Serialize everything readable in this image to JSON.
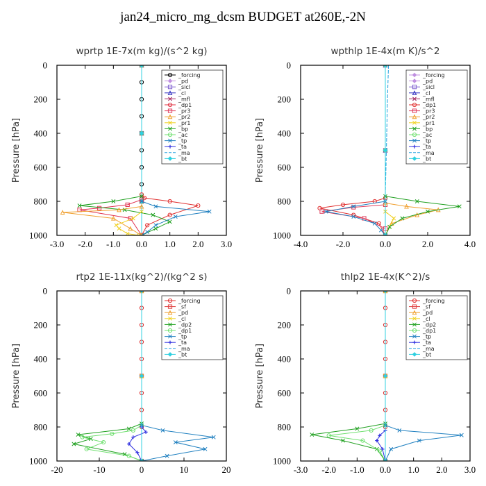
{
  "page_title": "jan24_micro_mg_dcsm  BUDGET at260E,-2N",
  "chart_data": [
    {
      "type": "line",
      "title": "wprtp   1E-7x(m kg)/(s^2 kg)",
      "ylabel": "Pressure [hPa]",
      "xlim": [
        -3.0,
        3.0
      ],
      "ylim": [
        1000,
        0
      ],
      "xticks": [
        "-3.0",
        "-2.0",
        "-1.0",
        "0.0",
        "1.0",
        "2.0",
        "3.0"
      ],
      "yticks": [
        "0",
        "200",
        "400",
        "600",
        "800",
        "1000"
      ],
      "legend_position": "top-right",
      "series": [
        {
          "name": "_forcing",
          "color": "#000000",
          "marker": "o",
          "x": [
            0,
            0,
            0,
            0,
            0,
            0,
            0,
            0,
            0,
            0
          ],
          "y": [
            0,
            100,
            200,
            300,
            400,
            500,
            600,
            700,
            800,
            1000
          ]
        },
        {
          "name": "_pd",
          "color": "#c090e0",
          "marker": "d",
          "x": [
            0,
            0,
            0,
            0
          ],
          "y": [
            0,
            400,
            800,
            1000
          ]
        },
        {
          "name": "_sicl",
          "color": "#8060d0",
          "marker": "s",
          "x": [
            0,
            0,
            0,
            0
          ],
          "y": [
            0,
            400,
            800,
            1000
          ]
        },
        {
          "name": "_cl",
          "color": "#3030c0",
          "marker": "^",
          "x": [
            0,
            0,
            0,
            0
          ],
          "y": [
            0,
            400,
            800,
            1000
          ]
        },
        {
          "name": "_mfl",
          "color": "#a0205a",
          "marker": "x",
          "x": [
            0,
            0,
            0,
            0
          ],
          "y": [
            0,
            400,
            800,
            1000
          ]
        },
        {
          "name": "_dp1",
          "color": "#e03040",
          "marker": "o",
          "x": [
            0,
            0,
            0,
            0
          ],
          "y": [
            0,
            400,
            800,
            1000
          ]
        },
        {
          "name": "_pr3",
          "color": "#e04060",
          "marker": "s",
          "x": [
            0,
            0,
            0,
            0
          ],
          "y": [
            0,
            400,
            800,
            1000
          ]
        },
        {
          "name": "_pr2",
          "color": "#f0a030",
          "marker": "^",
          "x": [
            0,
            0,
            0,
            0
          ],
          "y": [
            0,
            400,
            800,
            1000
          ]
        },
        {
          "name": "_pr1",
          "color": "#f0d020",
          "marker": "x",
          "x": [
            0,
            0,
            0,
            0
          ],
          "y": [
            0,
            400,
            800,
            1000
          ]
        },
        {
          "name": "_bp",
          "color": "#20a020",
          "marker": "x",
          "x": [
            0,
            0,
            0,
            0
          ],
          "y": [
            0,
            400,
            800,
            1000
          ]
        },
        {
          "name": "_ac",
          "color": "#70e070",
          "marker": "o",
          "x": [
            0,
            0,
            0,
            0
          ],
          "y": [
            0,
            400,
            800,
            1000
          ]
        },
        {
          "name": "_tp",
          "color": "#2080c0",
          "marker": "x",
          "x": [
            0,
            0,
            0,
            0
          ],
          "y": [
            0,
            400,
            800,
            1000
          ]
        },
        {
          "name": "_ta",
          "color": "#3030e0",
          "marker": "+",
          "x": [
            0,
            0,
            0,
            0
          ],
          "y": [
            0,
            400,
            800,
            1000
          ]
        },
        {
          "name": "_ma",
          "color": "#20a0e0",
          "marker": "-",
          "x": [
            0,
            0,
            0,
            0
          ],
          "y": [
            0,
            400,
            800,
            1000
          ]
        },
        {
          "name": "_bt",
          "color": "#30d0e0",
          "marker": "d",
          "x": [
            0,
            0,
            0,
            0
          ],
          "y": [
            0,
            400,
            800,
            1000
          ]
        },
        {
          "name": "_dp1",
          "color": "#e03030",
          "marker": "o",
          "x": [
            0,
            0.1,
            1.0,
            2.0,
            1.0,
            0.2,
            0
          ],
          "y": [
            760,
            780,
            800,
            825,
            880,
            940,
            1000
          ]
        },
        {
          "name": "_pr3",
          "color": "#e03050",
          "marker": "s",
          "x": [
            0,
            -0.5,
            -1.5,
            -2.2,
            -0.4,
            0
          ],
          "y": [
            790,
            820,
            840,
            850,
            900,
            1000
          ]
        },
        {
          "name": "_bp",
          "color": "#20a020",
          "marker": "x",
          "x": [
            0,
            -1.0,
            -2.2,
            -0.6,
            0.4,
            1.0,
            0.5,
            0
          ],
          "y": [
            770,
            800,
            825,
            850,
            880,
            920,
            960,
            1000
          ]
        },
        {
          "name": "_tp",
          "color": "#2080c0",
          "marker": "x",
          "x": [
            0,
            0.5,
            2.4,
            1.2,
            0.5,
            0.2,
            0
          ],
          "y": [
            800,
            830,
            860,
            890,
            940,
            980,
            1000
          ]
        },
        {
          "name": "_pr2",
          "color": "#f0a030",
          "marker": "^",
          "x": [
            0,
            -0.8,
            -2.8,
            -1.0,
            -0.4,
            0
          ],
          "y": [
            830,
            850,
            865,
            900,
            960,
            1000
          ]
        },
        {
          "name": "_pr1",
          "color": "#f0d020",
          "marker": "x",
          "x": [
            0,
            -0.3,
            -0.9,
            -0.8,
            -0.5,
            -0.1
          ],
          "y": [
            860,
            900,
            940,
            960,
            990,
            1000
          ]
        }
      ]
    },
    {
      "type": "line",
      "title": "wpthlp   1E-4x(m K)/s^2",
      "ylabel": "Pressure [hPa]",
      "xlim": [
        -4.0,
        4.0
      ],
      "ylim": [
        1000,
        0
      ],
      "xticks": [
        "-4.0",
        "-2.0",
        "0.0",
        "2.0",
        "4.0"
      ],
      "yticks": [
        "0",
        "200",
        "400",
        "600",
        "800",
        "1000"
      ],
      "legend_position": "top-right",
      "series": [
        {
          "name": "_forcing",
          "color": "#c090e0",
          "marker": "d",
          "x": [
            0,
            0,
            0
          ],
          "y": [
            0,
            500,
            1000
          ]
        },
        {
          "name": "_pd",
          "color": "#c090e0",
          "marker": "d",
          "x": [
            0,
            0,
            0
          ],
          "y": [
            0,
            500,
            1000
          ]
        },
        {
          "name": "_sicl",
          "color": "#8060d0",
          "marker": "s",
          "x": [
            0,
            0,
            0
          ],
          "y": [
            0,
            500,
            1000
          ]
        },
        {
          "name": "_cl",
          "color": "#3030c0",
          "marker": "^",
          "x": [
            0,
            0,
            0
          ],
          "y": [
            0,
            500,
            1000
          ]
        },
        {
          "name": "_mfl",
          "color": "#a0205a",
          "marker": "x",
          "x": [
            0,
            0,
            0
          ],
          "y": [
            0,
            500,
            1000
          ]
        },
        {
          "name": "_dp1",
          "color": "#e03030",
          "marker": "o",
          "x": [
            0,
            -0.5,
            -2.0,
            -3.1,
            -1.5,
            -0.3,
            0
          ],
          "y": [
            780,
            800,
            820,
            840,
            880,
            930,
            1000
          ]
        },
        {
          "name": "_pr3",
          "color": "#e04060",
          "marker": "s",
          "x": [
            0,
            -1.5,
            -3.0,
            -1.0,
            0
          ],
          "y": [
            820,
            835,
            860,
            900,
            960
          ]
        },
        {
          "name": "_pr2",
          "color": "#f0a030",
          "marker": "^",
          "x": [
            0,
            1.0,
            2.5,
            1.5,
            0.3,
            0
          ],
          "y": [
            810,
            830,
            850,
            880,
            930,
            1000
          ]
        },
        {
          "name": "_pr1",
          "color": "#f0d020",
          "marker": "x",
          "x": [
            0,
            0.4,
            0.2,
            0
          ],
          "y": [
            860,
            900,
            950,
            1000
          ]
        },
        {
          "name": "_bp",
          "color": "#20a020",
          "marker": "x",
          "x": [
            0,
            1.5,
            3.5,
            2.0,
            0.8,
            0.2,
            0
          ],
          "y": [
            770,
            800,
            830,
            860,
            900,
            950,
            1000
          ]
        },
        {
          "name": "_ac",
          "color": "#70e070",
          "marker": "o",
          "x": [
            0,
            0,
            0
          ],
          "y": [
            0,
            500,
            1000
          ]
        },
        {
          "name": "_tp",
          "color": "#2080c0",
          "marker": "x",
          "x": [
            0,
            -1.5,
            -2.8,
            -1.5,
            -0.5,
            -0.2,
            0
          ],
          "y": [
            800,
            830,
            860,
            890,
            930,
            970,
            1000
          ]
        },
        {
          "name": "_ta",
          "color": "#3030e0",
          "marker": "+",
          "x": [
            0,
            0,
            0
          ],
          "y": [
            0,
            500,
            1000
          ]
        },
        {
          "name": "_ma",
          "color": "#20a0e0",
          "marker": "-",
          "x": [
            0.15,
            0.1,
            0.05,
            0
          ],
          "y": [
            0,
            200,
            500,
            760
          ]
        },
        {
          "name": "_bt",
          "color": "#30d0e0",
          "marker": "d",
          "x": [
            0,
            0,
            0
          ],
          "y": [
            0,
            500,
            1000
          ]
        }
      ]
    },
    {
      "type": "line",
      "title": "rtp2   1E-11x(kg^2)/(kg^2 s)",
      "ylabel": "Pressure [hPa]",
      "xlim": [
        -20,
        20
      ],
      "ylim": [
        1000,
        0
      ],
      "xticks": [
        "-20",
        "-10",
        "0",
        "10",
        "20"
      ],
      "yticks": [
        "0",
        "200",
        "400",
        "600",
        "800",
        "1000"
      ],
      "legend_position": "top-right",
      "series": [
        {
          "name": "_forcing",
          "color": "#e03030",
          "marker": "o",
          "x": [
            0,
            0,
            0,
            0,
            0,
            0,
            0,
            0,
            0,
            0
          ],
          "y": [
            0,
            100,
            200,
            300,
            400,
            500,
            600,
            700,
            800,
            1000
          ]
        },
        {
          "name": "_sf",
          "color": "#e04040",
          "marker": "s",
          "x": [
            0,
            0,
            0
          ],
          "y": [
            0,
            500,
            1000
          ]
        },
        {
          "name": "_pd",
          "color": "#f0a030",
          "marker": "^",
          "x": [
            0,
            0,
            0
          ],
          "y": [
            0,
            500,
            1000
          ]
        },
        {
          "name": "_cl",
          "color": "#f0d020",
          "marker": "x",
          "x": [
            0,
            0,
            0
          ],
          "y": [
            0,
            500,
            1000
          ]
        },
        {
          "name": "_dp2",
          "color": "#20a020",
          "marker": "x",
          "x": [
            0,
            -3,
            -15,
            -12,
            -16,
            -4,
            0
          ],
          "y": [
            780,
            810,
            845,
            870,
            900,
            960,
            1000
          ]
        },
        {
          "name": "_dp1",
          "color": "#70e070",
          "marker": "o",
          "x": [
            0,
            -2,
            -7,
            -14,
            -9,
            -13,
            -3,
            0
          ],
          "y": [
            790,
            820,
            840,
            860,
            890,
            930,
            970,
            1000
          ]
        },
        {
          "name": "_tp",
          "color": "#2080c0",
          "marker": "x",
          "x": [
            0,
            5,
            17,
            8,
            15,
            6,
            0
          ],
          "y": [
            790,
            820,
            860,
            890,
            930,
            970,
            1000
          ]
        },
        {
          "name": "_ta",
          "color": "#3030e0",
          "marker": "+",
          "x": [
            0,
            1,
            -2,
            -3,
            -1,
            0
          ],
          "y": [
            800,
            830,
            860,
            900,
            950,
            1000
          ]
        },
        {
          "name": "_ma",
          "color": "#20a0e0",
          "marker": "-",
          "x": [
            0,
            0,
            0
          ],
          "y": [
            0,
            500,
            1000
          ]
        },
        {
          "name": "_bt",
          "color": "#30d0e0",
          "marker": "d",
          "x": [
            0,
            0,
            0
          ],
          "y": [
            0,
            500,
            1000
          ]
        }
      ]
    },
    {
      "type": "line",
      "title": "thlp2   1E-4x(K^2)/s",
      "ylabel": "Pressure [hPa]",
      "xlim": [
        -3.0,
        3.0
      ],
      "ylim": [
        1000,
        0
      ],
      "xticks": [
        "-3.0",
        "-2.0",
        "-1.0",
        "0.0",
        "1.0",
        "2.0",
        "3.0"
      ],
      "yticks": [
        "0",
        "200",
        "400",
        "600",
        "800",
        "1000"
      ],
      "legend_position": "top-right",
      "series": [
        {
          "name": "_forcing",
          "color": "#e03030",
          "marker": "o",
          "x": [
            0,
            0,
            0,
            0,
            0,
            0,
            0,
            0,
            0,
            0
          ],
          "y": [
            0,
            100,
            200,
            300,
            400,
            500,
            600,
            700,
            800,
            1000
          ]
        },
        {
          "name": "_sf",
          "color": "#e04040",
          "marker": "s",
          "x": [
            0,
            0,
            0
          ],
          "y": [
            0,
            500,
            1000
          ]
        },
        {
          "name": "_pd",
          "color": "#f0a030",
          "marker": "^",
          "x": [
            0,
            0,
            0
          ],
          "y": [
            0,
            500,
            1000
          ]
        },
        {
          "name": "_cl",
          "color": "#f0d020",
          "marker": "x",
          "x": [
            0,
            0,
            0
          ],
          "y": [
            0,
            500,
            1000
          ]
        },
        {
          "name": "_dp2",
          "color": "#20a020",
          "marker": "x",
          "x": [
            0,
            -1.0,
            -2.6,
            -1.5,
            -0.3,
            0
          ],
          "y": [
            780,
            810,
            845,
            880,
            930,
            1000
          ]
        },
        {
          "name": "_dp1",
          "color": "#70e070",
          "marker": "o",
          "x": [
            0,
            -0.5,
            -2.0,
            -0.8,
            -0.2,
            0
          ],
          "y": [
            790,
            820,
            850,
            880,
            940,
            1000
          ]
        },
        {
          "name": "_tp",
          "color": "#2080c0",
          "marker": "x",
          "x": [
            0,
            0.5,
            2.7,
            1.2,
            0.2,
            0
          ],
          "y": [
            790,
            820,
            848,
            880,
            930,
            1000
          ]
        },
        {
          "name": "_ta",
          "color": "#3030e0",
          "marker": "+",
          "x": [
            0,
            -0.2,
            -0.3,
            -0.1,
            0
          ],
          "y": [
            820,
            850,
            880,
            930,
            1000
          ]
        },
        {
          "name": "_ma",
          "color": "#20a0e0",
          "marker": "-",
          "x": [
            0,
            0,
            0
          ],
          "y": [
            0,
            500,
            1000
          ]
        },
        {
          "name": "_bt",
          "color": "#30d0e0",
          "marker": "d",
          "x": [
            0,
            0,
            0
          ],
          "y": [
            0,
            500,
            1000
          ]
        }
      ]
    }
  ]
}
